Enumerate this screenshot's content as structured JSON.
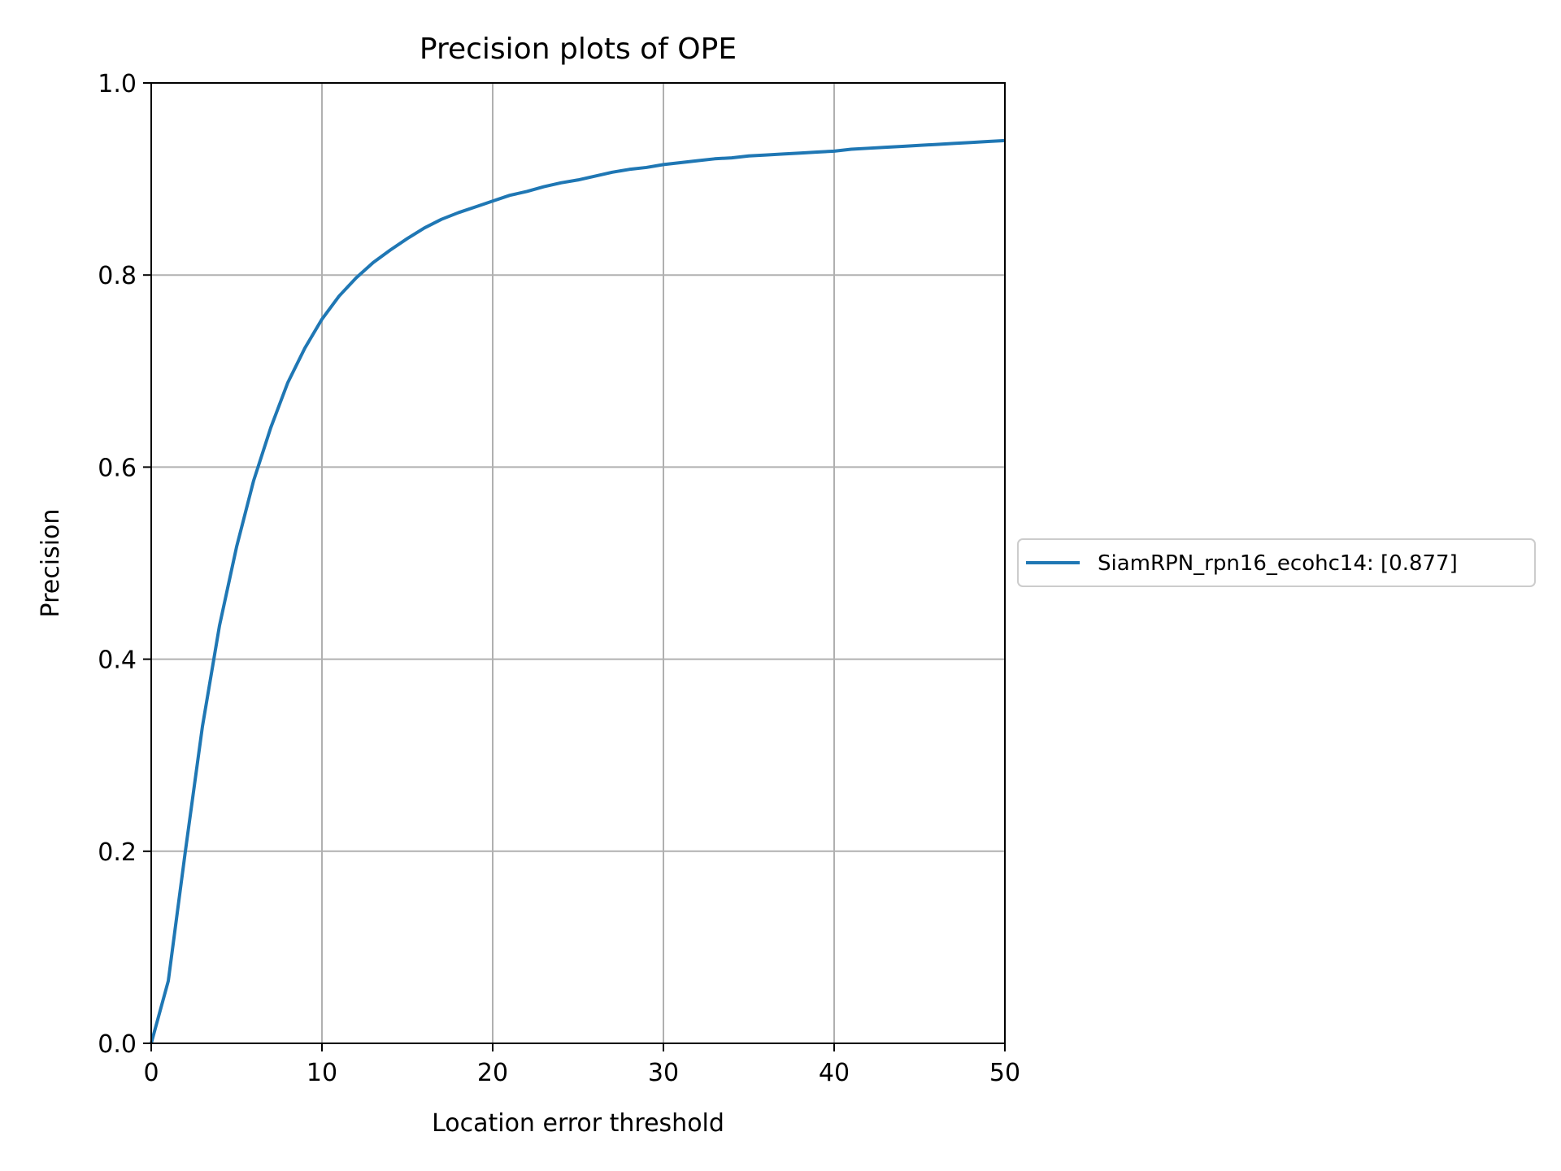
{
  "chart_data": {
    "type": "line",
    "title": "Precision plots of OPE",
    "xlabel": "Location error threshold",
    "ylabel": "Precision",
    "xlim": [
      0,
      50
    ],
    "ylim": [
      0,
      1.0
    ],
    "xticks": [
      0,
      10,
      20,
      30,
      40,
      50
    ],
    "xtick_labels": [
      "0",
      "10",
      "20",
      "30",
      "40",
      "50"
    ],
    "yticks": [
      0,
      0.2,
      0.4,
      0.6,
      0.8,
      1.0
    ],
    "ytick_labels": [
      "0.0",
      "0.2",
      "0.4",
      "0.6",
      "0.8",
      "1.0"
    ],
    "grid": true,
    "legend_position": "outside-right",
    "series": [
      {
        "name": "SiamRPN_rpn16_ecohc14: [0.877]",
        "color": "#1f77b4",
        "x": [
          0,
          1,
          2,
          3,
          4,
          5,
          6,
          7,
          8,
          9,
          10,
          11,
          12,
          13,
          14,
          15,
          16,
          17,
          18,
          19,
          20,
          21,
          22,
          23,
          24,
          25,
          26,
          27,
          28,
          29,
          30,
          31,
          32,
          33,
          34,
          35,
          36,
          37,
          38,
          39,
          40,
          41,
          42,
          43,
          44,
          45,
          46,
          47,
          48,
          49,
          50
        ],
        "y": [
          0.0,
          0.065,
          0.2,
          0.33,
          0.435,
          0.517,
          0.586,
          0.641,
          0.688,
          0.724,
          0.754,
          0.778,
          0.797,
          0.813,
          0.826,
          0.838,
          0.849,
          0.858,
          0.865,
          0.871,
          0.877,
          0.883,
          0.887,
          0.892,
          0.896,
          0.899,
          0.903,
          0.907,
          0.91,
          0.912,
          0.915,
          0.917,
          0.919,
          0.921,
          0.922,
          0.924,
          0.925,
          0.926,
          0.927,
          0.928,
          0.929,
          0.931,
          0.932,
          0.933,
          0.934,
          0.935,
          0.936,
          0.937,
          0.938,
          0.939,
          0.94
        ]
      }
    ]
  }
}
